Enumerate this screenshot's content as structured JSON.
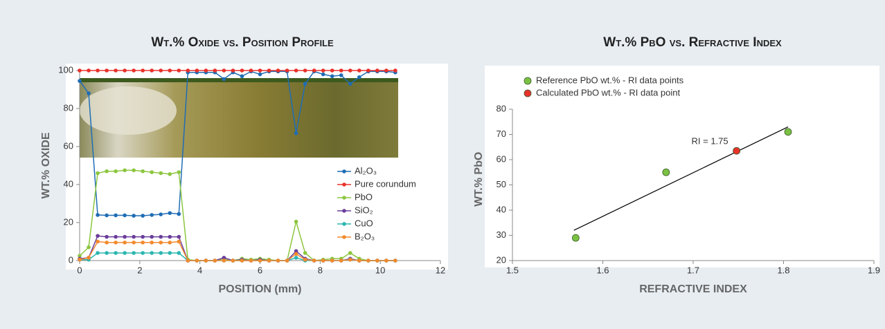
{
  "chart_data": [
    {
      "type": "line",
      "title": "Wt.% Oxide vs. Position Profile",
      "x_label": "POSITION (mm)",
      "y_label": "WT.% OXIDE",
      "x": [
        0,
        0.3,
        0.6,
        0.9,
        1.2,
        1.5,
        1.8,
        2.1,
        2.4,
        2.7,
        3.0,
        3.3,
        3.6,
        3.9,
        4.2,
        4.5,
        4.8,
        5.1,
        5.4,
        5.7,
        6.0,
        6.3,
        6.6,
        6.9,
        7.2,
        7.5,
        7.8,
        8.1,
        8.4,
        8.7,
        9.0,
        9.3,
        9.6,
        9.9,
        10.2,
        10.5
      ],
      "xlim": [
        0,
        12
      ],
      "xticks": [
        0,
        2,
        4,
        6,
        8,
        10,
        12
      ],
      "ylim": [
        0,
        100
      ],
      "yticks": [
        0,
        20,
        40,
        60,
        80,
        100
      ],
      "grid": false,
      "legend": "right",
      "series": [
        {
          "name": "Al₂O₃",
          "color": "#1f6db4",
          "values": [
            94.5,
            88,
            24,
            23.8,
            23.8,
            23.8,
            23.6,
            23.6,
            24,
            24.3,
            25,
            24.5,
            99,
            99,
            99,
            99,
            95.5,
            99,
            97,
            99.5,
            98,
            99.5,
            99.5,
            99.5,
            67,
            93,
            99.5,
            98,
            97,
            97.5,
            93,
            96.5,
            99.5,
            99.5,
            99.5,
            99
          ]
        },
        {
          "name": "Pure corundum",
          "color": "#e8322b",
          "values": [
            100,
            100,
            100,
            100,
            100,
            100,
            100,
            100,
            100,
            100,
            100,
            100,
            100,
            100,
            100,
            100,
            100,
            100,
            100,
            100,
            100,
            100,
            100,
            100,
            100,
            100,
            100,
            100,
            100,
            100,
            100,
            100,
            100,
            100,
            100,
            100
          ]
        },
        {
          "name": "PbO",
          "color": "#8cc63f",
          "values": [
            2.5,
            7,
            46,
            47,
            47,
            47.5,
            47.5,
            47,
            46.5,
            46,
            45.5,
            46.5,
            0.5,
            0,
            0,
            0,
            1,
            0,
            1,
            0.5,
            1,
            0.5,
            0,
            0,
            20.5,
            4,
            0,
            0.5,
            1,
            1,
            4,
            1,
            0,
            0,
            0,
            0
          ]
        },
        {
          "name": "SiO₂",
          "color": "#6a3d9a",
          "values": [
            1,
            1.5,
            13,
            12.5,
            12.5,
            12.5,
            12.5,
            12.5,
            12.5,
            12.5,
            12.5,
            12.5,
            0,
            0,
            0,
            0,
            1.5,
            0,
            0.5,
            0,
            0.5,
            0,
            0,
            0,
            5,
            1,
            0,
            0,
            0,
            0,
            1,
            0,
            0,
            0,
            0,
            0
          ]
        },
        {
          "name": "CuO",
          "color": "#2bb5b0",
          "values": [
            0.5,
            0.5,
            4,
            4,
            4,
            4,
            4,
            4,
            4,
            4,
            4,
            4,
            0,
            0,
            0,
            0,
            0,
            0,
            0,
            0,
            0,
            0,
            0,
            0,
            1.5,
            0,
            0,
            0,
            0,
            0,
            0.5,
            0,
            0,
            0,
            0,
            0
          ]
        },
        {
          "name": "B₂O₃",
          "color": "#f28a2e",
          "values": [
            0.5,
            1.5,
            10,
            9.5,
            9.5,
            9.5,
            9.5,
            9.5,
            9.5,
            9.5,
            9.5,
            10,
            0,
            0,
            0,
            0,
            0,
            0,
            0,
            0,
            0,
            0,
            0,
            0,
            3.5,
            0.5,
            0,
            0,
            0,
            0,
            0.5,
            0,
            0,
            0,
            0,
            0
          ]
        }
      ]
    },
    {
      "type": "scatter",
      "title": "Wt.% PbO vs. Refractive Index",
      "x_label": "REFRACTIVE INDEX",
      "y_label": "WT.% PbO",
      "xlim": [
        1.5,
        1.9
      ],
      "xticks": [
        1.5,
        1.6,
        1.7,
        1.8,
        1.9
      ],
      "ylim": [
        20,
        90
      ],
      "yticks": [
        20,
        30,
        40,
        50,
        60,
        70,
        80
      ],
      "grid": false,
      "legend": "upper left",
      "series": [
        {
          "name": "Reference PbO wt.% - RI data points",
          "color": "#7ac143",
          "x": [
            1.57,
            1.67,
            1.805
          ],
          "values": [
            29,
            55,
            71
          ]
        },
        {
          "name": "Calculated PbO wt.% - RI data point",
          "color": "#e8322b",
          "x": [
            1.748
          ],
          "values": [
            63.5
          ],
          "annotation": "RI = 1.75"
        }
      ],
      "trendline": {
        "color": "#000000",
        "x": [
          1.568,
          1.805
        ],
        "values": [
          32,
          73
        ]
      }
    }
  ]
}
